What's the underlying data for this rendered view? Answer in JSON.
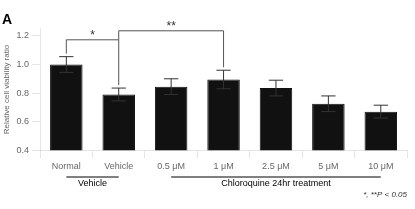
{
  "chart_data": {
    "type": "bar",
    "title": "A",
    "categories": [
      "Normal",
      "Vehicle",
      "0.5 μM",
      "1 μM",
      "2.5 μM",
      "5 μM",
      "10 μM"
    ],
    "values": [
      1.0,
      0.79,
      0.845,
      0.895,
      0.835,
      0.725,
      0.67
    ],
    "errors": [
      0.055,
      0.045,
      0.055,
      0.065,
      0.055,
      0.055,
      0.045
    ],
    "color": "#111111",
    "ylabel": "Relative cell viability ratio",
    "ylim": [
      0.4,
      1.25
    ],
    "yticks": [
      0.4,
      0.6,
      0.8,
      {
        "value": 1.0,
        "label": "1.0"
      },
      1.2
    ],
    "grid": false,
    "groups": [
      {
        "label": "Vehicle",
        "categories": [
          "Normal",
          "Vehicle"
        ]
      },
      {
        "label": "Chloroquine 24hr treatment",
        "categories": [
          "0.5 μM",
          "1 μM",
          "2.5 μM",
          "5 μM",
          "10 μM"
        ]
      }
    ],
    "annotations": [
      {
        "text": "*",
        "from": "Normal",
        "to": "Vehicle"
      },
      {
        "text": "**",
        "from": "Vehicle",
        "to": "1 μM"
      },
      {
        "text": "*, **P < 0.05"
      }
    ]
  }
}
